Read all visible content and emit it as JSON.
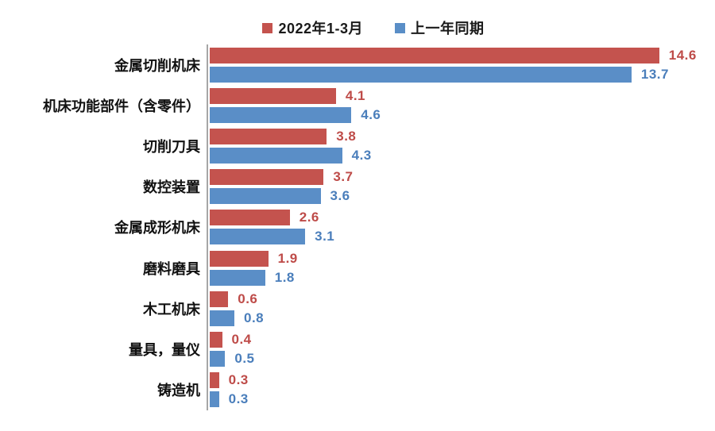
{
  "chart_data": {
    "type": "bar",
    "orientation": "horizontal",
    "title": "",
    "categories": [
      "金属切削机床",
      "机床功能部件（含零件）",
      "切削刀具",
      "数控装置",
      "金属成形机床",
      "磨料磨具",
      "木工机床",
      "量具，量仪",
      "铸造机"
    ],
    "series": [
      {
        "name": "2022年1-3月",
        "color": "#c4534e",
        "label_color": "#be4b48",
        "values": [
          14.6,
          4.1,
          3.8,
          3.7,
          2.6,
          1.9,
          0.6,
          0.4,
          0.3
        ]
      },
      {
        "name": "上一年同期",
        "color": "#5a8ec7",
        "label_color": "#4a7ebb",
        "values": [
          13.7,
          4.6,
          4.3,
          3.6,
          3.1,
          1.8,
          0.8,
          0.5,
          0.3
        ]
      }
    ],
    "xlim": [
      0,
      16
    ],
    "grid": false,
    "legend_position": "top",
    "value_labels": true,
    "axis_color": "#a6a6a6",
    "background_color": "#ffffff"
  }
}
